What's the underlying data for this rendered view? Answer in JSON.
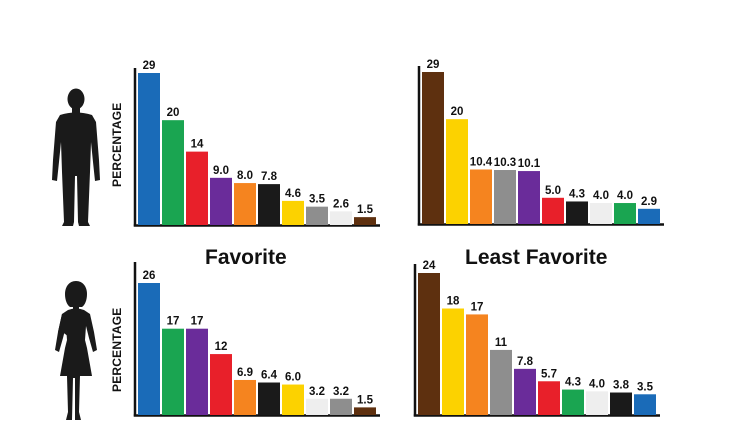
{
  "colors": {
    "blue": "#1a6bb8",
    "green": "#1aa551",
    "red": "#e8202a",
    "purple": "#6a2c9a",
    "orange": "#f5841f",
    "black": "#1a1a1a",
    "yellow": "#fcd200",
    "gray": "#8e8e8e",
    "white": "#eeeeee",
    "brown": "#5e300f"
  },
  "labels": {
    "ylabel_top": "PERCENTAGE",
    "ylabel_bottom": "PERCENTAGE",
    "favorite": "Favorite",
    "least_favorite": "Least Favorite"
  },
  "icons": {
    "male": "man-silhouette-icon",
    "female": "woman-silhouette-icon"
  },
  "chart_data": [
    {
      "type": "bar",
      "group": "men",
      "column": "Favorite",
      "values": [
        29,
        20,
        14,
        9.0,
        8.0,
        7.8,
        4.6,
        3.5,
        2.6,
        1.5
      ],
      "value_labels": [
        "29",
        "20",
        "14",
        "9.0",
        "8.0",
        "7.8",
        "4.6",
        "3.5",
        "2.6",
        "1.5"
      ],
      "colors": [
        "blue",
        "green",
        "red",
        "purple",
        "orange",
        "black",
        "yellow",
        "gray",
        "white",
        "brown"
      ],
      "ylim": [
        0,
        29
      ],
      "ylabel": "PERCENTAGE",
      "grid": false
    },
    {
      "type": "bar",
      "group": "men",
      "column": "Least Favorite",
      "values": [
        29,
        20,
        10.4,
        10.3,
        10.1,
        5.0,
        4.3,
        4.0,
        4.0,
        2.9
      ],
      "value_labels": [
        "29",
        "20",
        "10.4",
        "10.3",
        "10.1",
        "5.0",
        "4.3",
        "4.0",
        "4.0",
        "2.9"
      ],
      "colors": [
        "brown",
        "yellow",
        "orange",
        "gray",
        "purple",
        "red",
        "black",
        "white",
        "green",
        "blue"
      ],
      "ylim": [
        0,
        29
      ],
      "grid": false
    },
    {
      "type": "bar",
      "group": "women",
      "column": "Favorite",
      "values": [
        26,
        17,
        17,
        12,
        6.9,
        6.4,
        6.0,
        3.2,
        3.2,
        1.5
      ],
      "value_labels": [
        "26",
        "17",
        "17",
        "12",
        "6.9",
        "6.4",
        "6.0",
        "3.2",
        "3.2",
        "1.5"
      ],
      "colors": [
        "blue",
        "green",
        "purple",
        "red",
        "orange",
        "black",
        "yellow",
        "white",
        "gray",
        "brown"
      ],
      "ylim": [
        0,
        26
      ],
      "ylabel": "PERCENTAGE",
      "grid": false
    },
    {
      "type": "bar",
      "group": "women",
      "column": "Least Favorite",
      "values": [
        24,
        18,
        17,
        11,
        7.8,
        5.7,
        4.3,
        4.0,
        3.8,
        3.5
      ],
      "value_labels": [
        "24",
        "18",
        "17",
        "11",
        "7.8",
        "5.7",
        "4.3",
        "4.0",
        "3.8",
        "3.5"
      ],
      "colors": [
        "brown",
        "yellow",
        "orange",
        "gray",
        "purple",
        "red",
        "green",
        "white",
        "black",
        "blue"
      ],
      "ylim": [
        0,
        24
      ],
      "grid": false
    }
  ]
}
